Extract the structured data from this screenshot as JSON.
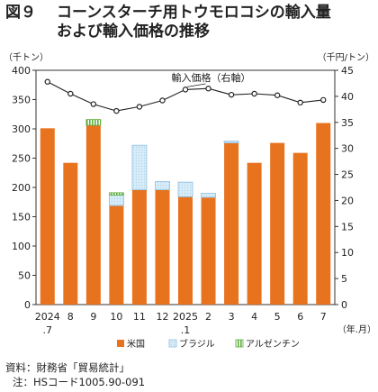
{
  "title": {
    "number": "図９",
    "line1": "コーンスターチ用トウモロコシの輸入量",
    "line2": "および輸入価格の推移"
  },
  "source": "資料：財務省「貿易統計」",
  "note": "注：HSコード1005.90-091",
  "chart_data": {
    "type": "bar",
    "stacked": true,
    "categories": [
      "2024\n.7",
      "8",
      "9",
      "10",
      "11",
      "12",
      "2025\n.1",
      "2",
      "3",
      "4",
      "5",
      "6",
      "7"
    ],
    "x_unit": "（年.月）",
    "y_left": {
      "label": "（千トン）",
      "range": [
        0,
        400
      ],
      "ticks": [
        0,
        50,
        100,
        150,
        200,
        250,
        300,
        350,
        400
      ]
    },
    "y_right": {
      "label": "（千円/トン）",
      "range": [
        0,
        45
      ],
      "ticks": [
        0,
        5,
        10,
        15,
        20,
        25,
        30,
        35,
        40,
        45
      ]
    },
    "series": [
      {
        "name": "米国",
        "color": "#e8731e",
        "axis": "left",
        "values": [
          301,
          242,
          306,
          169,
          196,
          196,
          184,
          183,
          276,
          242,
          276,
          259,
          310
        ]
      },
      {
        "name": "ブラジル",
        "color": "#d6ecf8",
        "axis": "left",
        "values": [
          0,
          0,
          0,
          18,
          76,
          14,
          25,
          7,
          3,
          0,
          0,
          0,
          0
        ]
      },
      {
        "name": "アルゼンチン",
        "color": "#5fae3e",
        "axis": "left",
        "values": [
          0,
          0,
          10,
          4,
          0,
          0,
          0,
          0,
          0,
          0,
          0,
          0,
          0
        ]
      },
      {
        "name": "輸入価格（右軸）",
        "type": "line",
        "color": "#222222",
        "axis": "right",
        "values": [
          42.8,
          40.5,
          38.5,
          37.2,
          38.0,
          39.2,
          41.3,
          41.5,
          40.3,
          40.5,
          40.2,
          38.8,
          39.3
        ]
      }
    ],
    "annotation": "輸入価格（右軸）",
    "legend": {
      "position": "bottom",
      "entries": [
        "米国",
        "ブラジル",
        "アルゼンチン"
      ]
    },
    "grid": false
  }
}
